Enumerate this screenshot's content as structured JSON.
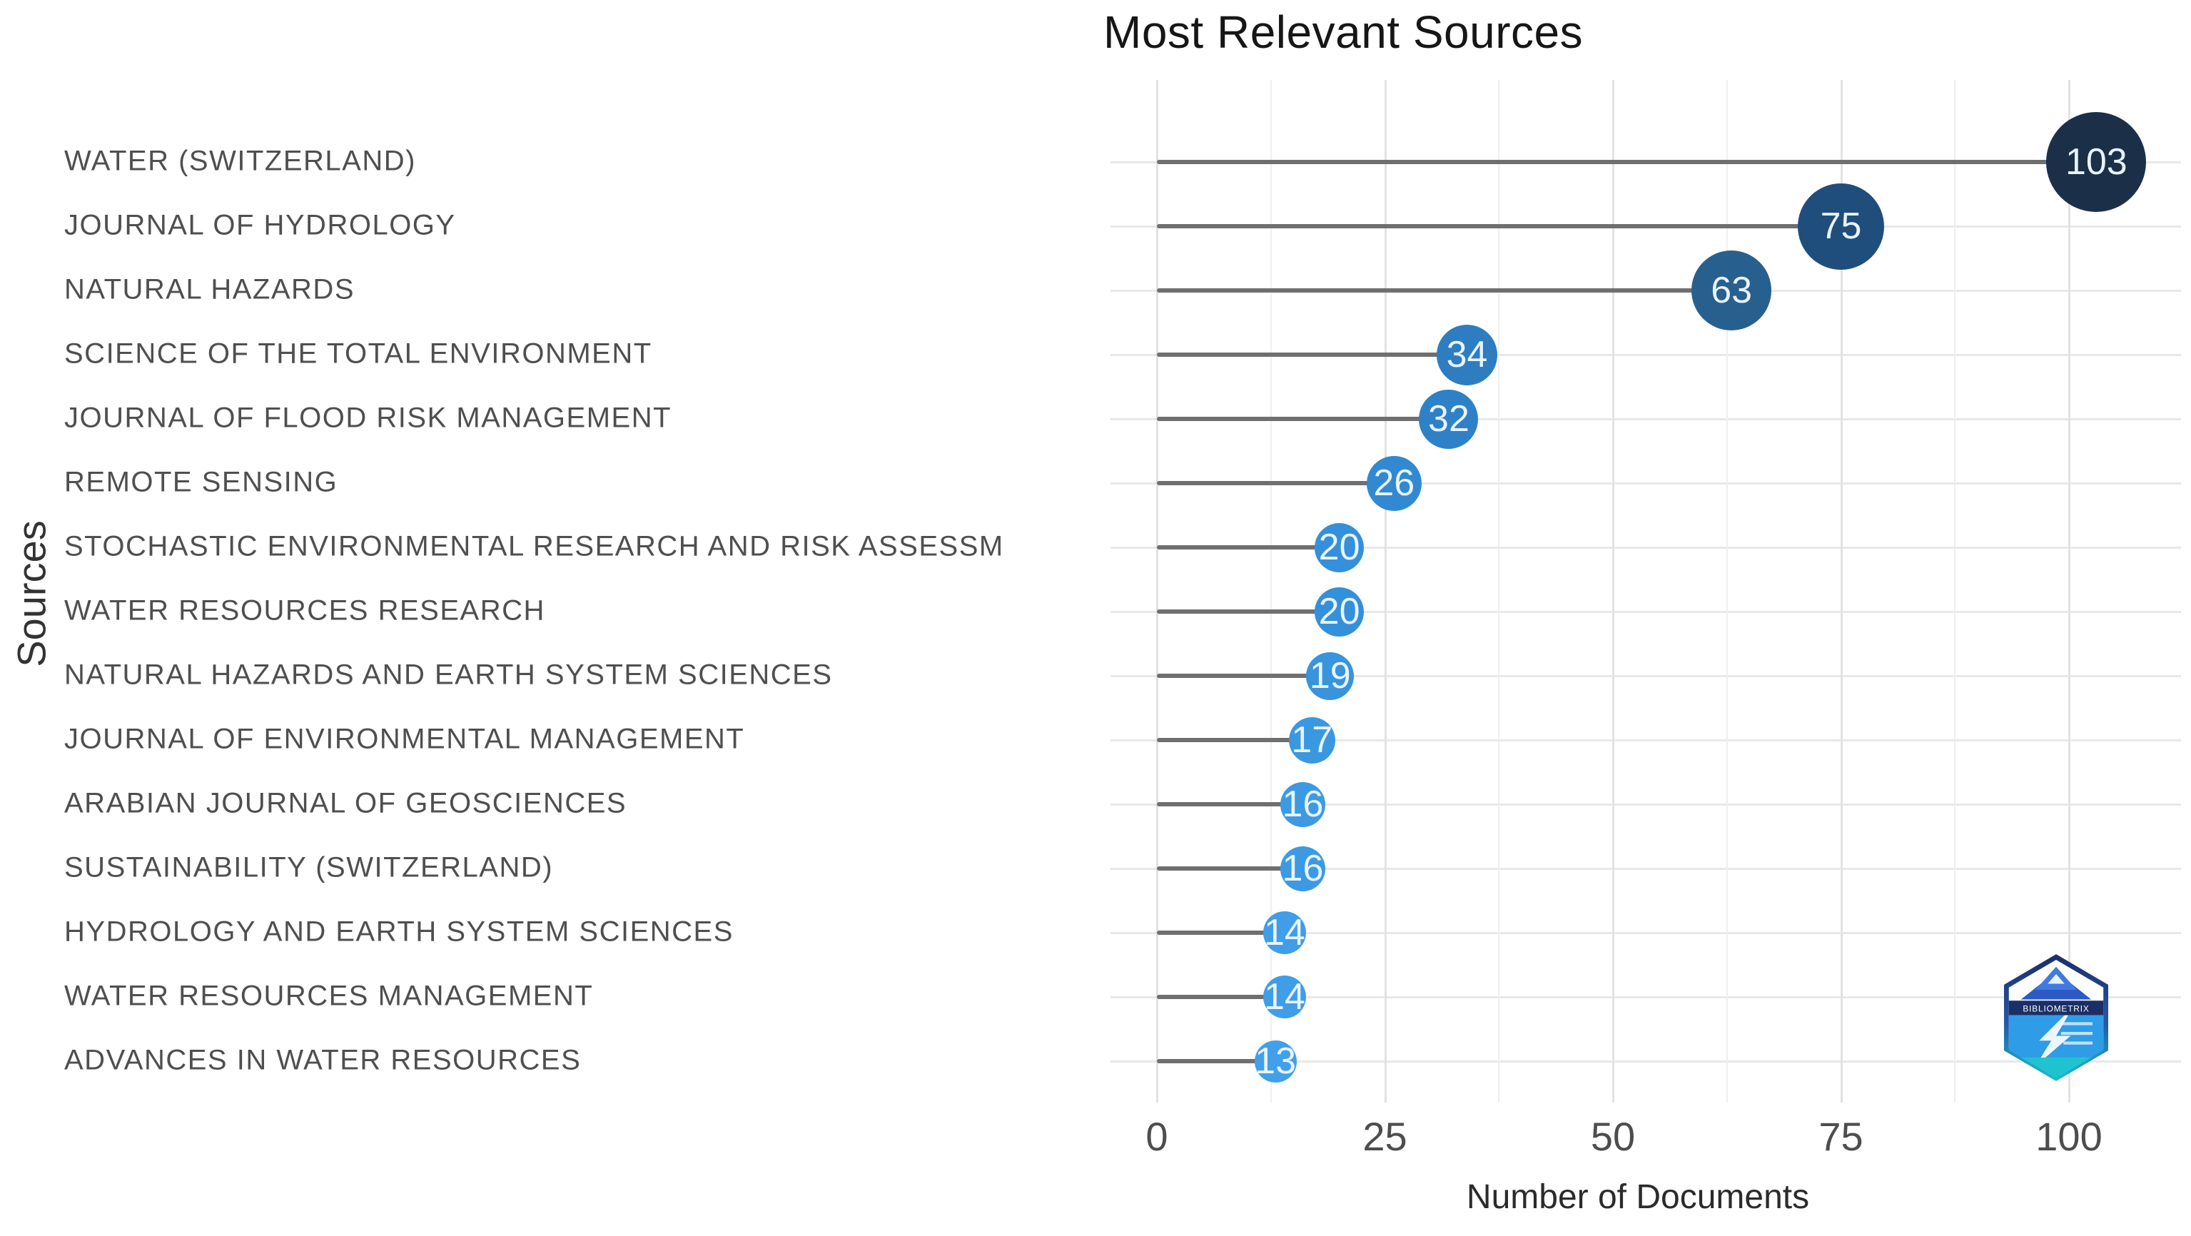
{
  "title": "Most Relevant Sources",
  "x_axis": {
    "label": "Number of Documents",
    "ticks": [
      0,
      25,
      50,
      75,
      100
    ]
  },
  "y_axis": {
    "label": "Sources"
  },
  "branding": {
    "badge_text": "BIBLIOMETRIX"
  },
  "chart_data": {
    "type": "scatter",
    "variant": "lollipop",
    "title": "Most Relevant Sources",
    "xlabel": "Number of Documents",
    "ylabel": "Sources",
    "xlim": [
      0,
      112
    ],
    "x_ticks": [
      0,
      25,
      50,
      75,
      100
    ],
    "grid": true,
    "stem_color": "#6f6f6f",
    "categories": [
      "WATER (SWITZERLAND)",
      "JOURNAL OF HYDROLOGY",
      "NATURAL HAZARDS",
      "SCIENCE OF THE TOTAL ENVIRONMENT",
      "JOURNAL OF FLOOD RISK MANAGEMENT",
      "REMOTE SENSING",
      "STOCHASTIC ENVIRONMENTAL RESEARCH AND RISK ASSESSM",
      "WATER RESOURCES RESEARCH",
      "NATURAL HAZARDS AND EARTH SYSTEM SCIENCES",
      "JOURNAL OF ENVIRONMENTAL MANAGEMENT",
      "ARABIAN JOURNAL OF GEOSCIENCES",
      "SUSTAINABILITY (SWITZERLAND)",
      "HYDROLOGY AND EARTH SYSTEM SCIENCES",
      "WATER RESOURCES MANAGEMENT",
      "ADVANCES IN WATER RESOURCES"
    ],
    "values": [
      103,
      75,
      63,
      34,
      32,
      26,
      20,
      20,
      19,
      17,
      16,
      16,
      14,
      14,
      13
    ],
    "point_colors": [
      "#1b3048",
      "#1f4e7c",
      "#27608f",
      "#2d7dc0",
      "#2e81c6",
      "#3189d2",
      "#3490da",
      "#3490da",
      "#3794dd",
      "#3a98e1",
      "#3c9ae3",
      "#3c9ae3",
      "#3f9ee7",
      "#3f9ee7",
      "#41a0e9"
    ],
    "point_sizes": [
      140,
      121,
      112,
      85,
      83,
      77,
      69,
      69,
      67,
      65,
      63,
      63,
      60,
      60,
      59
    ]
  }
}
